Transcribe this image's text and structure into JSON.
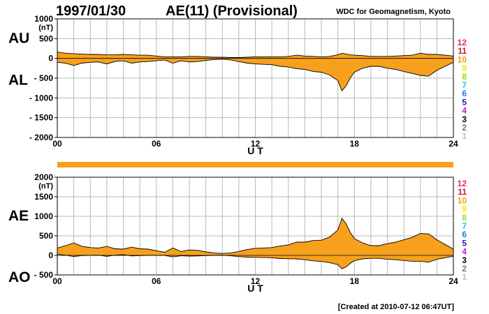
{
  "header": {
    "date": "1997/01/30",
    "title": "AE(11) (Provisional)",
    "credit": "WDC for Geomagnetism, Kyoto"
  },
  "footer": "[Created at 2010-07-12 06:47UT]",
  "legend": {
    "labels": [
      "12",
      "11",
      "10",
      "9",
      "8",
      "7",
      "6",
      "5",
      "4",
      "3",
      "2",
      "1"
    ],
    "colors": [
      "#e8207a",
      "#c81e1e",
      "#f5a000",
      "#e8e800",
      "#90e020",
      "#18c8e8",
      "#1878f0",
      "#2818c8",
      "#c818c8",
      "#000000",
      "#787878",
      "#c0c0c0"
    ]
  },
  "fill_color": "#f7a01c",
  "chart_data": [
    {
      "type": "area",
      "panel": "AU-AL",
      "unit": "(nT)",
      "label_upper": "AU",
      "label_lower": "AL",
      "xlabel": "U T",
      "xlim": [
        0,
        24
      ],
      "ylim": [
        -2000,
        1000
      ],
      "yticks": [
        1000,
        500,
        0,
        -500,
        -1000,
        -1500,
        -2000
      ],
      "ytick_labels": [
        "1000",
        "500",
        "0",
        "- 500",
        "- 1000",
        "- 1500",
        "- 2000"
      ],
      "xticks": [
        0,
        6,
        12,
        18,
        24
      ],
      "xtick_labels": [
        "00",
        "06",
        "12",
        "18",
        "24"
      ],
      "grid": true,
      "x": [
        0,
        0.5,
        1,
        1.5,
        2,
        2.5,
        3,
        3.5,
        4,
        4.5,
        5,
        5.5,
        6,
        6.5,
        7,
        7.5,
        8,
        8.5,
        9,
        9.5,
        10,
        10.5,
        11,
        11.5,
        12,
        12.5,
        13,
        13.5,
        14,
        14.5,
        15,
        15.5,
        16,
        16.5,
        17,
        17.25,
        17.5,
        17.75,
        18,
        18.5,
        19,
        19.5,
        20,
        20.5,
        21,
        21.5,
        22,
        22.5,
        23,
        23.5,
        24
      ],
      "series": [
        {
          "name": "AU",
          "values": [
            160,
            130,
            120,
            110,
            100,
            100,
            90,
            90,
            100,
            90,
            80,
            80,
            60,
            40,
            40,
            40,
            50,
            50,
            40,
            30,
            30,
            20,
            20,
            30,
            40,
            40,
            40,
            40,
            50,
            80,
            60,
            50,
            40,
            50,
            90,
            130,
            110,
            90,
            80,
            70,
            50,
            50,
            50,
            60,
            70,
            80,
            130,
            100,
            100,
            80,
            60
          ]
        },
        {
          "name": "AL",
          "values": [
            -100,
            -120,
            -180,
            -120,
            -100,
            -90,
            -140,
            -80,
            -60,
            -120,
            -90,
            -80,
            -60,
            -40,
            -120,
            -60,
            -90,
            -80,
            -50,
            -30,
            -20,
            -40,
            -80,
            -120,
            -140,
            -150,
            -160,
            -200,
            -220,
            -260,
            -280,
            -330,
            -350,
            -420,
            -560,
            -820,
            -700,
            -500,
            -350,
            -250,
            -200,
            -200,
            -250,
            -280,
            -330,
            -380,
            -430,
            -450,
            -300,
            -200,
            -100
          ]
        }
      ]
    },
    {
      "type": "area",
      "panel": "AE-AO",
      "unit": "(nT)",
      "label_upper": "AE",
      "label_lower": "AO",
      "xlabel": "U T",
      "xlim": [
        0,
        24
      ],
      "ylim": [
        -500,
        2000
      ],
      "yticks": [
        2000,
        1500,
        1000,
        500,
        0,
        -500
      ],
      "ytick_labels": [
        "2000",
        "1500",
        "1000",
        "500",
        "0",
        "- 500"
      ],
      "xticks": [
        0,
        6,
        12,
        18,
        24
      ],
      "xtick_labels": [
        "00",
        "06",
        "12",
        "18",
        "24"
      ],
      "grid": true,
      "x": [
        0,
        0.5,
        1,
        1.5,
        2,
        2.5,
        3,
        3.5,
        4,
        4.5,
        5,
        5.5,
        6,
        6.5,
        7,
        7.5,
        8,
        8.5,
        9,
        9.5,
        10,
        10.5,
        11,
        11.5,
        12,
        12.5,
        13,
        13.5,
        14,
        14.5,
        15,
        15.5,
        16,
        16.5,
        17,
        17.25,
        17.5,
        17.75,
        18,
        18.5,
        19,
        19.5,
        20,
        20.5,
        21,
        21.5,
        22,
        22.5,
        23,
        23.5,
        24
      ],
      "series": [
        {
          "name": "AE",
          "values": [
            190,
            250,
            320,
            230,
            200,
            190,
            230,
            170,
            160,
            210,
            170,
            160,
            120,
            80,
            190,
            100,
            140,
            130,
            90,
            60,
            50,
            60,
            100,
            150,
            180,
            190,
            200,
            240,
            270,
            340,
            340,
            380,
            390,
            470,
            650,
            950,
            810,
            590,
            430,
            320,
            250,
            250,
            300,
            340,
            400,
            460,
            560,
            550,
            400,
            280,
            160
          ]
        },
        {
          "name": "AO",
          "values": [
            30,
            5,
            -30,
            -5,
            0,
            5,
            -25,
            5,
            20,
            -15,
            -5,
            0,
            0,
            0,
            -40,
            -10,
            -20,
            -15,
            -5,
            0,
            5,
            -10,
            -30,
            -45,
            -50,
            -55,
            -60,
            -80,
            -85,
            -90,
            -110,
            -140,
            -155,
            -185,
            -235,
            -345,
            -295,
            -205,
            -135,
            -90,
            -75,
            -75,
            -100,
            -110,
            -130,
            -150,
            -150,
            -175,
            -100,
            -60,
            -20
          ]
        }
      ]
    }
  ]
}
